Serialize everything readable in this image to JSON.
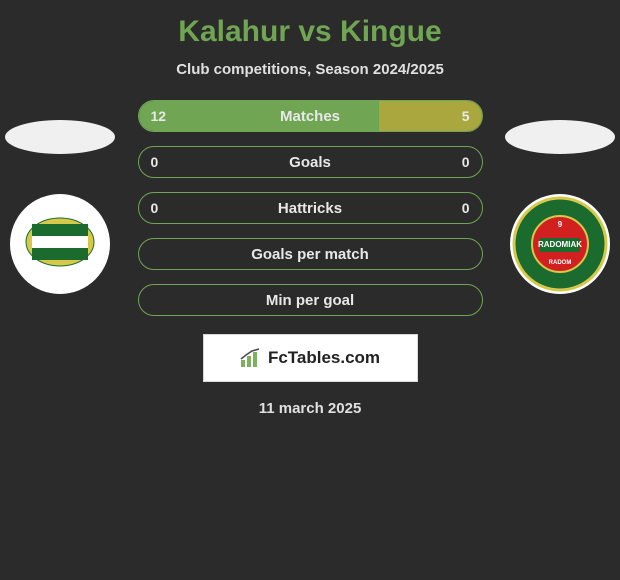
{
  "header": {
    "title": "Kalahur vs Kingue",
    "title_color": "#6fa553",
    "title_fontsize": 30,
    "subtitle": "Club competitions, Season 2024/2025",
    "subtitle_color": "#e0e0e0",
    "subtitle_fontsize": 15
  },
  "background_color": "#2b2b2b",
  "player_ellipse_color": "#f0f0f0",
  "left_club": {
    "name": "lechia-club",
    "badge_bg": "#ffffff",
    "flag_stripes": [
      "#1b6b2e",
      "#ffffff",
      "#1b6b2e"
    ],
    "band_color": "#d6c94a"
  },
  "right_club": {
    "name": "radomiak-club",
    "badge_bg": "#ffffff",
    "ring_color": "#d6c94a",
    "inner_colors": [
      "#1b6b2e",
      "#d21f1f",
      "#1b6b2e"
    ],
    "text": "RADOMIAK",
    "subtext": "RADOM",
    "text_color": "#ffffff"
  },
  "bars": {
    "border_color": "#6fa553",
    "left_fill_color": "#6fa553",
    "right_fill_color": "#aba73f",
    "label_color": "#e8e8e8",
    "value_color": "#e8e8e8",
    "rows": [
      {
        "label": "Matches",
        "left_val": "12",
        "right_val": "5",
        "left_pct": 70,
        "right_pct": 30
      },
      {
        "label": "Goals",
        "left_val": "0",
        "right_val": "0",
        "left_pct": 0,
        "right_pct": 0
      },
      {
        "label": "Hattricks",
        "left_val": "0",
        "right_val": "0",
        "left_pct": 0,
        "right_pct": 0
      },
      {
        "label": "Goals per match",
        "left_val": "",
        "right_val": "",
        "left_pct": 0,
        "right_pct": 0
      },
      {
        "label": "Min per goal",
        "left_val": "",
        "right_val": "",
        "left_pct": 0,
        "right_pct": 0
      }
    ]
  },
  "site_badge": {
    "text": "FcTables.com",
    "bg_color": "#ffffff",
    "border_color": "#d8d8d8",
    "text_color": "#222222",
    "icon_color": "#7fb060"
  },
  "footer": {
    "date": "11 march 2025",
    "date_color": "#e0e0e0"
  }
}
